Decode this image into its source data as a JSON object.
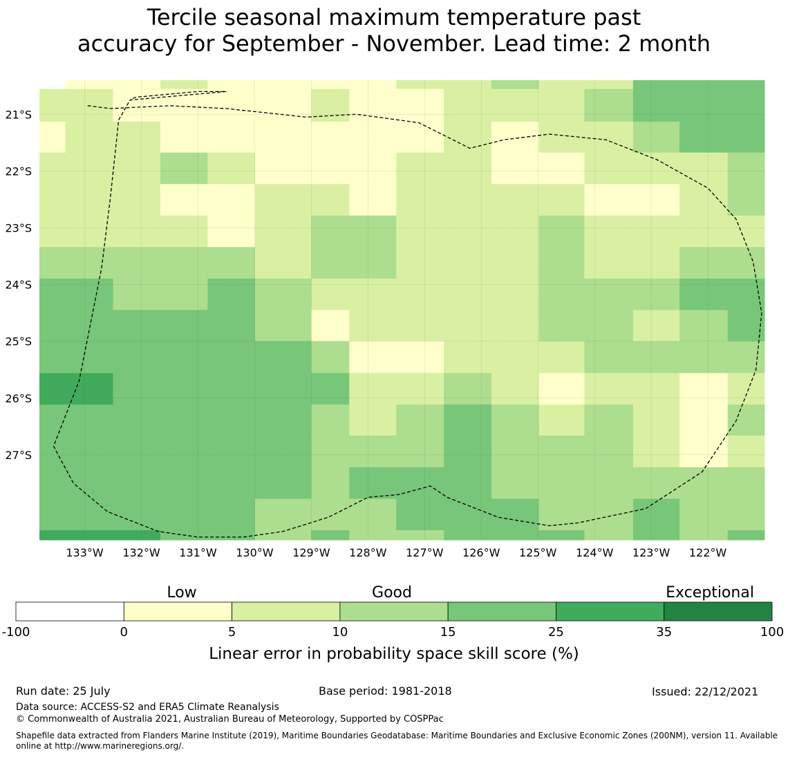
{
  "title": {
    "line1": "Tercile seasonal maximum temperature past",
    "line2": "accuracy for September - November. Lead time: 2 month"
  },
  "map": {
    "lon_range": [
      -133.8,
      -121.0
    ],
    "lat_range": [
      -28.5,
      -20.4
    ],
    "lon_ticks": [
      {
        "value": -133,
        "label": "133°W"
      },
      {
        "value": -132,
        "label": "132°W"
      },
      {
        "value": -131,
        "label": "131°W"
      },
      {
        "value": -130,
        "label": "130°W"
      },
      {
        "value": -129,
        "label": "129°W"
      },
      {
        "value": -128,
        "label": "128°W"
      },
      {
        "value": -127,
        "label": "127°W"
      },
      {
        "value": -126,
        "label": "126°W"
      },
      {
        "value": -125,
        "label": "125°W"
      },
      {
        "value": -124,
        "label": "124°W"
      },
      {
        "value": -123,
        "label": "123°W"
      },
      {
        "value": -122,
        "label": "122°W"
      }
    ],
    "lat_ticks": [
      {
        "value": -21,
        "label": "21°S"
      },
      {
        "value": -22,
        "label": "22°S"
      },
      {
        "value": -23,
        "label": "23°S"
      },
      {
        "value": -24,
        "label": "24°S"
      },
      {
        "value": -25,
        "label": "25°S"
      },
      {
        "value": -26,
        "label": "26°S"
      },
      {
        "value": -27,
        "label": "27°S"
      }
    ],
    "grid_lines": true,
    "cell_lon_edges": [
      -133.8,
      -133.338,
      -132.5,
      -131.665,
      -130.83,
      -129.993,
      -129.0,
      -128.33,
      -127.5,
      -126.66,
      -125.821,
      -124.983,
      -124.18,
      -123.32,
      -122.5,
      -121.65,
      -121.0
    ],
    "cell_lat_edges": [
      -20.4,
      -20.555,
      -21.13,
      -21.675,
      -22.23,
      -22.785,
      -23.34,
      -23.895,
      -24.45,
      -25.0,
      -25.56,
      -26.115,
      -26.66,
      -27.22,
      -27.775,
      -28.33,
      -28.5
    ],
    "skill_classes": [
      [
        0,
        1,
        1,
        2,
        1,
        1,
        1,
        1,
        2,
        2,
        3,
        2,
        2,
        4,
        4,
        4
      ],
      [
        2,
        2,
        1,
        1,
        1,
        1,
        2,
        1,
        1,
        2,
        2,
        2,
        3,
        4,
        4,
        4
      ],
      [
        1,
        2,
        2,
        1,
        1,
        1,
        1,
        1,
        1,
        2,
        1,
        2,
        2,
        3,
        4,
        4
      ],
      [
        2,
        2,
        2,
        3,
        2,
        1,
        1,
        1,
        2,
        2,
        1,
        1,
        2,
        2,
        2,
        3
      ],
      [
        2,
        2,
        2,
        1,
        1,
        2,
        2,
        1,
        2,
        2,
        2,
        2,
        1,
        1,
        2,
        3
      ],
      [
        2,
        2,
        2,
        2,
        1,
        2,
        3,
        3,
        2,
        2,
        2,
        3,
        2,
        2,
        2,
        2
      ],
      [
        3,
        3,
        3,
        3,
        3,
        2,
        3,
        3,
        2,
        2,
        2,
        3,
        2,
        2,
        3,
        3
      ],
      [
        4,
        4,
        3,
        3,
        4,
        3,
        2,
        2,
        2,
        2,
        2,
        3,
        3,
        3,
        4,
        4
      ],
      [
        4,
        4,
        4,
        4,
        4,
        3,
        1,
        2,
        2,
        2,
        2,
        3,
        3,
        2,
        3,
        4
      ],
      [
        4,
        4,
        4,
        4,
        4,
        4,
        3,
        1,
        1,
        2,
        2,
        2,
        3,
        3,
        3,
        3
      ],
      [
        5,
        5,
        4,
        4,
        4,
        4,
        4,
        2,
        2,
        3,
        2,
        1,
        2,
        2,
        1,
        2
      ],
      [
        4,
        4,
        4,
        4,
        4,
        4,
        3,
        2,
        3,
        4,
        3,
        2,
        3,
        2,
        1,
        3
      ],
      [
        4,
        4,
        4,
        4,
        4,
        4,
        3,
        3,
        3,
        4,
        3,
        3,
        3,
        2,
        1,
        2
      ],
      [
        4,
        4,
        4,
        4,
        4,
        4,
        3,
        4,
        4,
        4,
        3,
        3,
        3,
        3,
        3,
        3
      ],
      [
        4,
        4,
        4,
        4,
        4,
        3,
        3,
        3,
        4,
        4,
        4,
        3,
        3,
        4,
        3,
        3
      ],
      [
        5,
        5,
        5,
        4,
        4,
        3,
        4,
        3,
        3,
        4,
        4,
        4,
        3,
        4,
        3,
        4
      ]
    ],
    "boundary_lonlat": [
      [
        -132.95,
        -20.85
      ],
      [
        -132.55,
        -20.9
      ],
      [
        -131.5,
        -20.85
      ],
      [
        -130.5,
        -20.9
      ],
      [
        -129.55,
        -21.0
      ],
      [
        -129.1,
        -21.05
      ],
      [
        -128.2,
        -21.0
      ],
      [
        -127.1,
        -21.15
      ],
      [
        -126.2,
        -21.6
      ],
      [
        -125.6,
        -21.45
      ],
      [
        -124.8,
        -21.35
      ],
      [
        -123.8,
        -21.45
      ],
      [
        -122.9,
        -21.8
      ],
      [
        -122.0,
        -22.3
      ],
      [
        -121.5,
        -22.85
      ],
      [
        -121.2,
        -23.6
      ],
      [
        -121.05,
        -24.5
      ],
      [
        -121.15,
        -25.5
      ],
      [
        -121.5,
        -26.4
      ],
      [
        -122.1,
        -27.3
      ],
      [
        -123.1,
        -27.95
      ],
      [
        -124.3,
        -28.2
      ],
      [
        -124.8,
        -28.25
      ],
      [
        -125.7,
        -28.1
      ],
      [
        -126.6,
        -27.75
      ],
      [
        -126.9,
        -27.55
      ],
      [
        -127.45,
        -27.7
      ],
      [
        -128.0,
        -27.75
      ],
      [
        -128.7,
        -28.1
      ],
      [
        -129.5,
        -28.35
      ],
      [
        -130.2,
        -28.45
      ],
      [
        -131.0,
        -28.45
      ],
      [
        -131.7,
        -28.35
      ],
      [
        -132.6,
        -28.0
      ],
      [
        -133.2,
        -27.5
      ],
      [
        -133.55,
        -26.85
      ],
      [
        -133.1,
        -25.7
      ],
      [
        -132.9,
        -24.7
      ],
      [
        -132.7,
        -23.7
      ],
      [
        -132.55,
        -22.5
      ],
      [
        -132.4,
        -21.1
      ],
      [
        -132.2,
        -20.75
      ],
      [
        -130.5,
        -20.6
      ],
      [
        -131.0,
        -20.6
      ],
      [
        -132.1,
        -20.7
      ],
      [
        -132.2,
        -20.75
      ]
    ]
  },
  "colorbar": {
    "ticks": [
      "-100",
      "0",
      "5",
      "10",
      "15",
      "25",
      "35",
      "100"
    ],
    "colors": [
      "#ffffff",
      "#ffffcc",
      "#d9f0a3",
      "#addd8e",
      "#78c679",
      "#41ab5d",
      "#238443"
    ],
    "categories": [
      "Low",
      "Good",
      "Exceptional"
    ],
    "label": "Linear error in probability space skill score (%)"
  },
  "footer": {
    "run_date": "Run date: 25 July",
    "base_period": "Base period: 1981-2018",
    "issued": "Issued: 22/12/2021",
    "data_source": "Data source: ACCESS-S2 and ERA5 Climate Reanalysis",
    "copyright": "© Commonwealth of Australia 2021, Australian Bureau of Meteorology, Supported by COSPPac",
    "shapefile": "Shapefile data extracted from Flanders Marine Institute (2019), Maritime Boundaries Geodatabase: Maritime Boundaries and Exclusive Economic Zones (200NM), version 11. Available online at http://www.marineregions.org/."
  }
}
